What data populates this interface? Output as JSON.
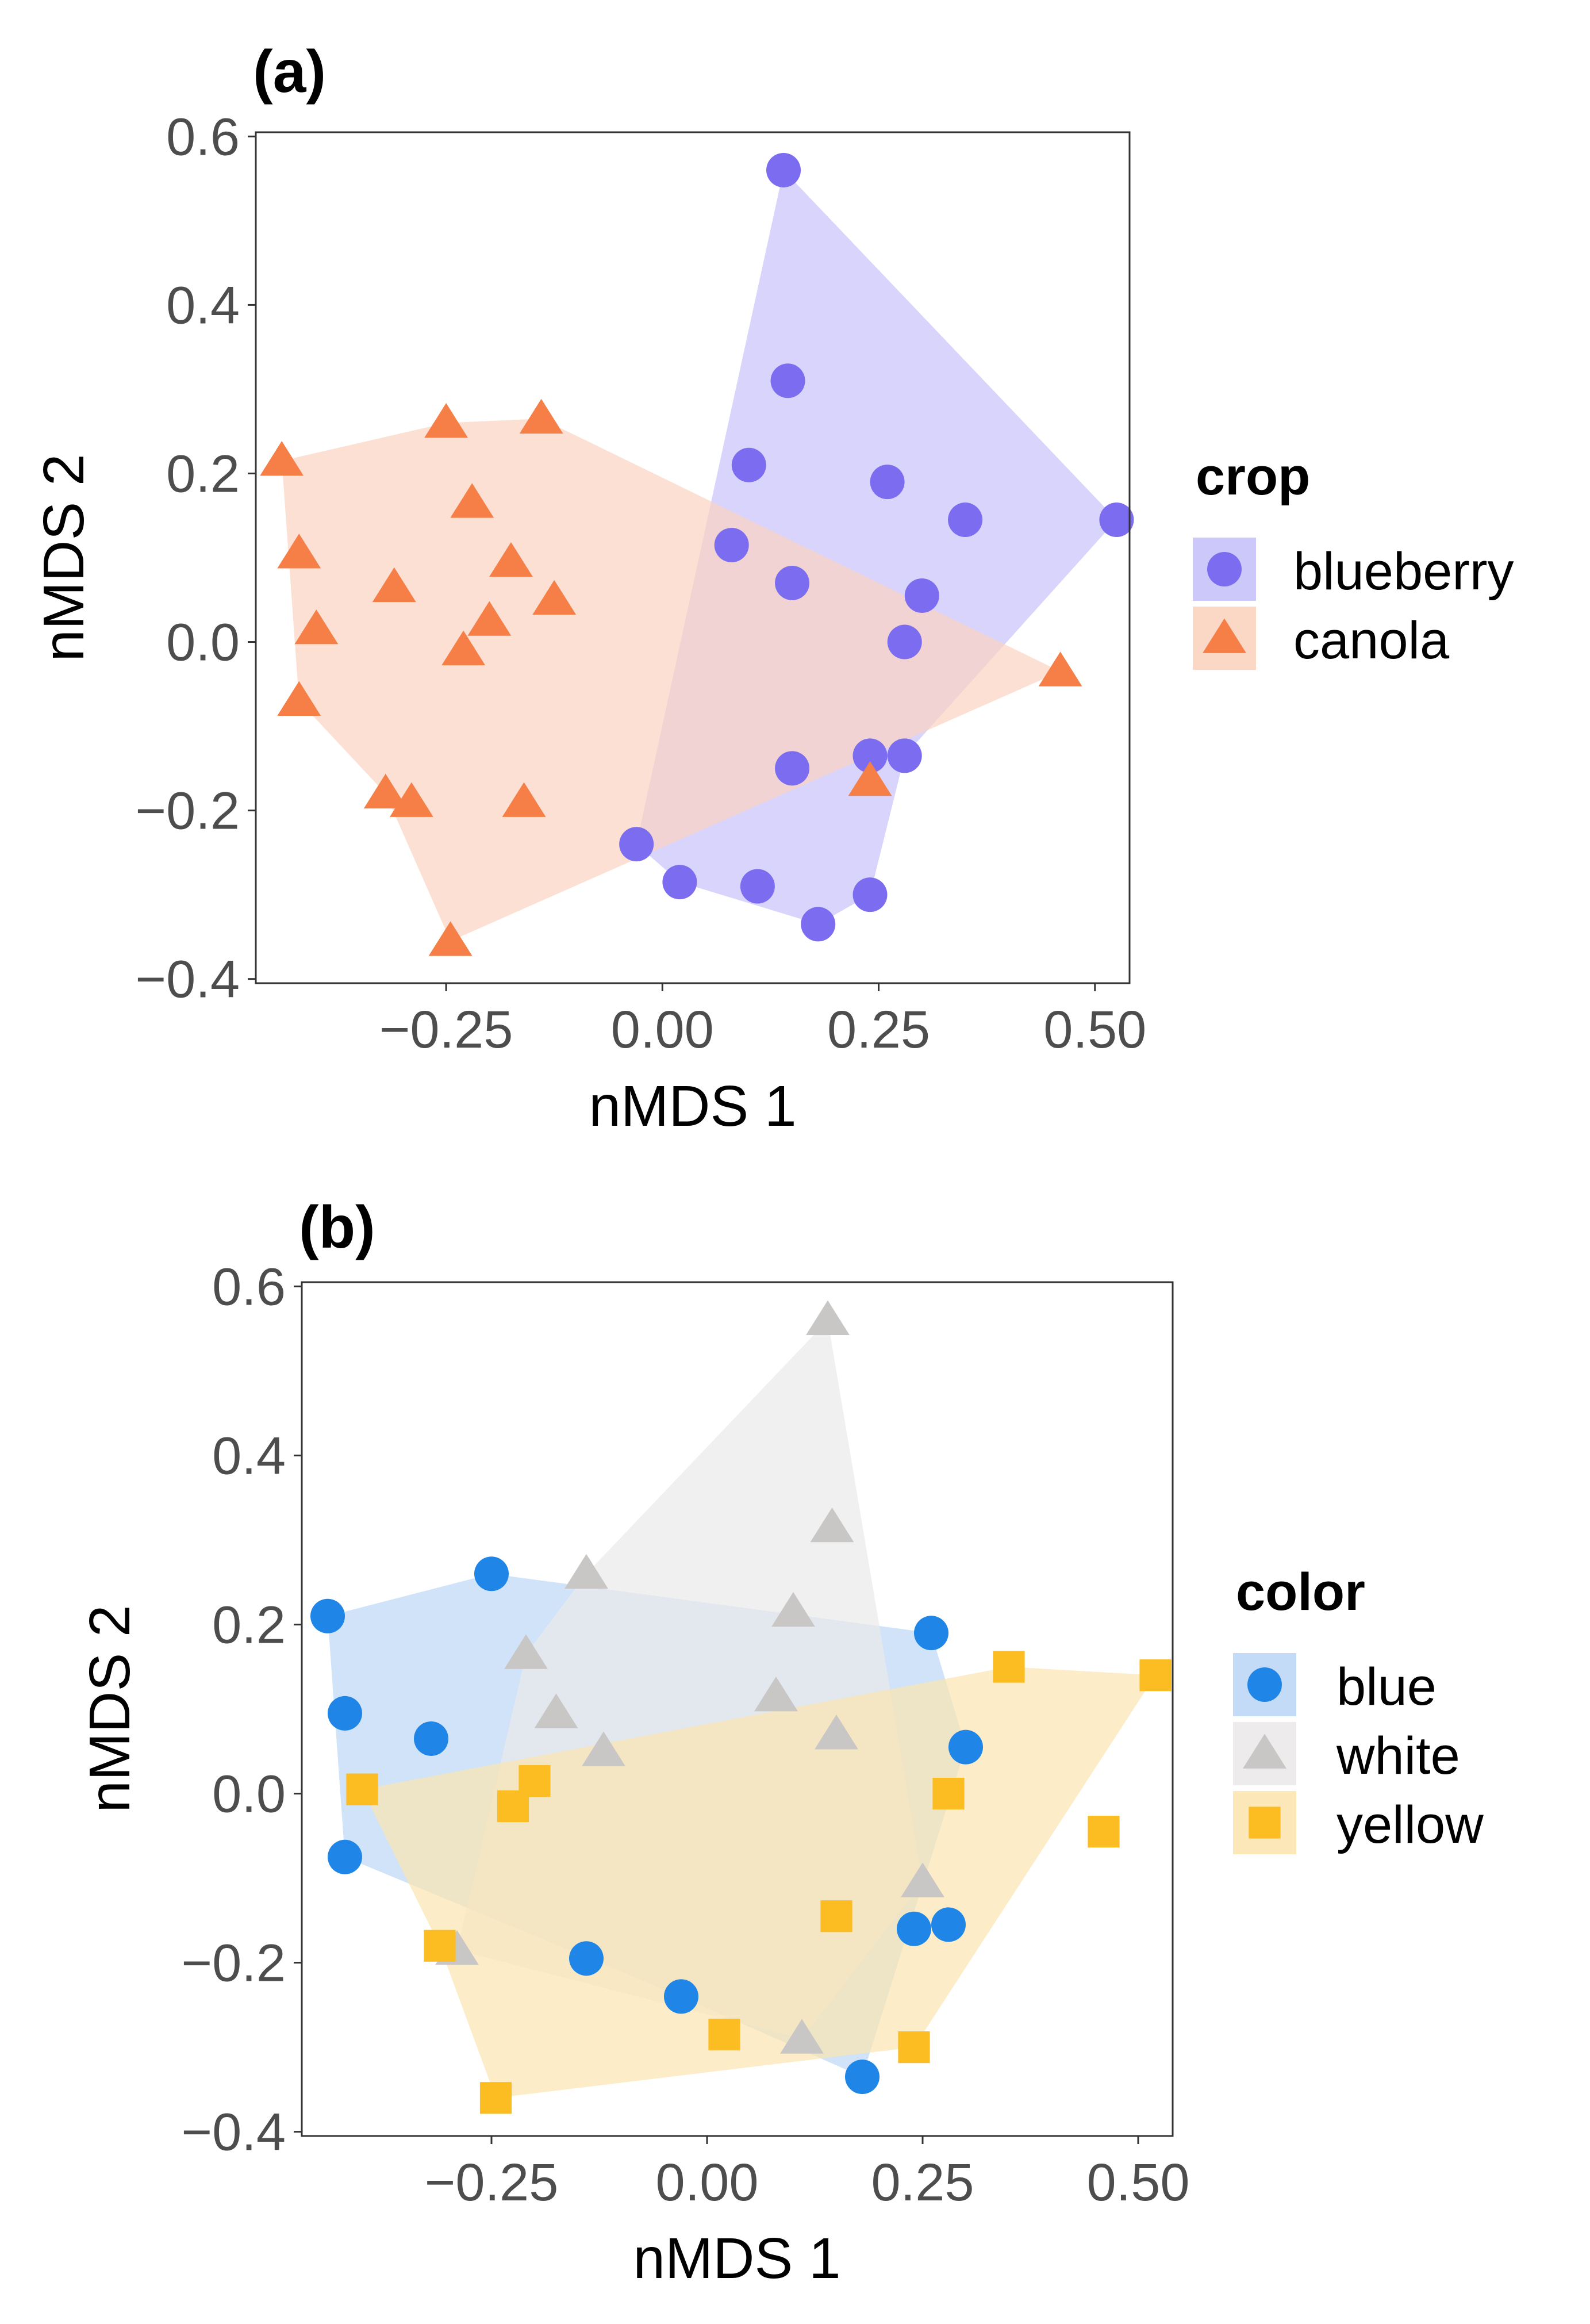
{
  "chart_data": [
    {
      "type": "scatter",
      "panel_label": "(a)",
      "xlabel": "nMDS 1",
      "ylabel": "nMDS 2",
      "xlim": [
        -0.47,
        0.54
      ],
      "ylim": [
        -0.405,
        0.605
      ],
      "xticks": [
        -0.25,
        0.0,
        0.25,
        0.5
      ],
      "xtick_labels": [
        "−0.25",
        "0.00",
        "0.25",
        "0.50"
      ],
      "yticks": [
        -0.4,
        -0.2,
        0.0,
        0.2,
        0.4,
        0.6
      ],
      "ytick_labels": [
        "−0.4",
        "−0.2",
        "0.0",
        "0.2",
        "0.4",
        "0.6"
      ],
      "grid": false,
      "legend": {
        "title": "crop",
        "placement": "right",
        "entries": [
          {
            "label": "blueberry",
            "shape": "circle",
            "color": "#7b6cf0",
            "fill": "#c8c2f9"
          },
          {
            "label": "canola",
            "shape": "triangle",
            "color": "#f57f47",
            "fill": "#fbd3c0"
          }
        ]
      },
      "series": [
        {
          "name": "blueberry",
          "shape": "circle",
          "color": "#7b6cf0",
          "fill": "#c8c2f9",
          "x": [
            0.14,
            0.145,
            0.1,
            0.26,
            0.35,
            0.525,
            0.08,
            0.15,
            0.3,
            0.28,
            0.15,
            0.24,
            0.28,
            -0.03,
            0.02,
            0.11,
            0.18,
            0.24
          ],
          "y": [
            0.56,
            0.31,
            0.21,
            0.19,
            0.145,
            0.145,
            0.115,
            0.07,
            0.055,
            0.0,
            -0.15,
            -0.135,
            -0.135,
            -0.24,
            -0.285,
            -0.29,
            -0.335,
            -0.3
          ]
        },
        {
          "name": "canola",
          "shape": "triangle",
          "color": "#f57f47",
          "fill": "#fbd3c0",
          "x": [
            -0.44,
            -0.25,
            -0.14,
            -0.42,
            -0.22,
            -0.175,
            -0.31,
            -0.125,
            -0.4,
            -0.2,
            -0.23,
            -0.42,
            -0.32,
            -0.29,
            -0.16,
            -0.245,
            0.46,
            0.24
          ],
          "y": [
            0.215,
            0.26,
            0.265,
            0.105,
            0.165,
            0.095,
            0.065,
            0.05,
            0.015,
            0.025,
            -0.01,
            -0.07,
            -0.18,
            -0.19,
            -0.19,
            -0.355,
            -0.035,
            -0.165
          ]
        }
      ],
      "hulls": [
        {
          "name": "blueberry",
          "x": [
            0.14,
            0.525,
            0.28,
            0.24,
            0.18,
            0.02,
            -0.03
          ],
          "y": [
            0.56,
            0.145,
            -0.135,
            -0.3,
            -0.335,
            -0.285,
            -0.24
          ]
        },
        {
          "name": "canola",
          "x": [
            -0.14,
            0.46,
            -0.245,
            -0.32,
            -0.42,
            -0.44,
            -0.25
          ],
          "y": [
            0.265,
            -0.035,
            -0.355,
            -0.18,
            -0.07,
            0.215,
            0.26
          ]
        }
      ]
    },
    {
      "type": "scatter",
      "panel_label": "(b)",
      "xlabel": "nMDS 1",
      "ylabel": "nMDS 2",
      "xlim": [
        -0.47,
        0.54
      ],
      "ylim": [
        -0.405,
        0.605
      ],
      "xticks": [
        -0.25,
        0.0,
        0.25,
        0.5
      ],
      "xtick_labels": [
        "−0.25",
        "0.00",
        "0.25",
        "0.50"
      ],
      "yticks": [
        -0.4,
        -0.2,
        0.0,
        0.2,
        0.4,
        0.6
      ],
      "ytick_labels": [
        "−0.4",
        "−0.2",
        "0.0",
        "0.2",
        "0.4",
        "0.6"
      ],
      "grid": false,
      "legend": {
        "title": "color",
        "placement": "right",
        "entries": [
          {
            "label": "blue",
            "shape": "circle",
            "color": "#1f86e8",
            "fill": "#bcd7f6"
          },
          {
            "label": "white",
            "shape": "triangle",
            "color": "#c9c6c6",
            "fill": "#ebe9e9"
          },
          {
            "label": "yellow",
            "shape": "square",
            "color": "#fbbd22",
            "fill": "#fbe4b0"
          }
        ]
      },
      "series": [
        {
          "name": "blue",
          "shape": "circle",
          "color": "#1f86e8",
          "fill": "#bcd7f6",
          "x": [
            -0.44,
            -0.25,
            -0.42,
            -0.32,
            0.26,
            0.3,
            -0.42,
            -0.14,
            -0.03,
            0.24,
            0.28,
            0.18
          ],
          "y": [
            0.21,
            0.26,
            0.095,
            0.065,
            0.19,
            0.055,
            -0.075,
            -0.195,
            -0.24,
            -0.16,
            -0.155,
            -0.335
          ]
        },
        {
          "name": "white",
          "shape": "triangle",
          "color": "#c9c6c6",
          "fill": "#ebe9e9",
          "x": [
            0.14,
            0.145,
            -0.14,
            0.1,
            -0.21,
            -0.175,
            0.08,
            0.15,
            -0.12,
            0.25,
            -0.29,
            0.11
          ],
          "y": [
            0.56,
            0.315,
            0.26,
            0.215,
            0.165,
            0.095,
            0.115,
            0.07,
            0.05,
            -0.105,
            -0.185,
            -0.29
          ]
        },
        {
          "name": "yellow",
          "shape": "square",
          "color": "#fbbd22",
          "fill": "#fbe4b0",
          "x": [
            0.35,
            0.52,
            -0.4,
            -0.2,
            -0.225,
            0.28,
            0.46,
            -0.31,
            0.15,
            0.02,
            0.24,
            -0.245
          ],
          "y": [
            0.15,
            0.14,
            0.005,
            0.015,
            -0.015,
            0.0,
            -0.045,
            -0.18,
            -0.145,
            -0.285,
            -0.3,
            -0.36
          ]
        }
      ],
      "hulls": [
        {
          "name": "blue",
          "x": [
            -0.25,
            0.26,
            0.3,
            0.18,
            -0.03,
            -0.42,
            -0.44
          ],
          "y": [
            0.26,
            0.19,
            0.055,
            -0.335,
            -0.24,
            -0.075,
            0.21
          ]
        },
        {
          "name": "white",
          "x": [
            0.14,
            0.25,
            0.11,
            -0.29,
            -0.21,
            -0.14
          ],
          "y": [
            0.56,
            -0.105,
            -0.29,
            -0.185,
            0.165,
            0.26
          ]
        },
        {
          "name": "yellow",
          "x": [
            0.35,
            0.52,
            0.24,
            -0.245,
            -0.31,
            -0.4
          ],
          "y": [
            0.15,
            0.14,
            -0.3,
            -0.36,
            -0.18,
            0.005
          ]
        }
      ]
    }
  ]
}
